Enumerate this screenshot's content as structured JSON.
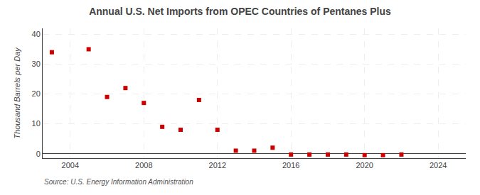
{
  "chart_data": {
    "type": "scatter",
    "title": "Annual U.S. Net Imports from OPEC Countries of Pentanes Plus",
    "y_label": "Thousand Barrels per Day",
    "annotations": [
      "Source: U.S. Energy Information Administration"
    ],
    "x": [
      2003,
      2005,
      2006,
      2007,
      2008,
      2009,
      2010,
      2011,
      2012,
      2013,
      2014,
      2015,
      2016,
      2017,
      2018,
      2019,
      2020,
      2021,
      2022
    ],
    "values": [
      34,
      35,
      19,
      22,
      17,
      9,
      8,
      18,
      8,
      1,
      1,
      2,
      -0.3,
      -0.3,
      -0.3,
      -0.3,
      -0.5,
      -0.5,
      -0.3
    ],
    "color": "#cc0000",
    "marker": "square",
    "xlim": [
      2002.5,
      2025.5
    ],
    "xticks": [
      2004,
      2008,
      2012,
      2016,
      2020,
      2024
    ],
    "ylim": [
      -1.5,
      42
    ],
    "yticks": [
      0,
      10,
      20,
      30,
      40
    ],
    "grid": true
  }
}
